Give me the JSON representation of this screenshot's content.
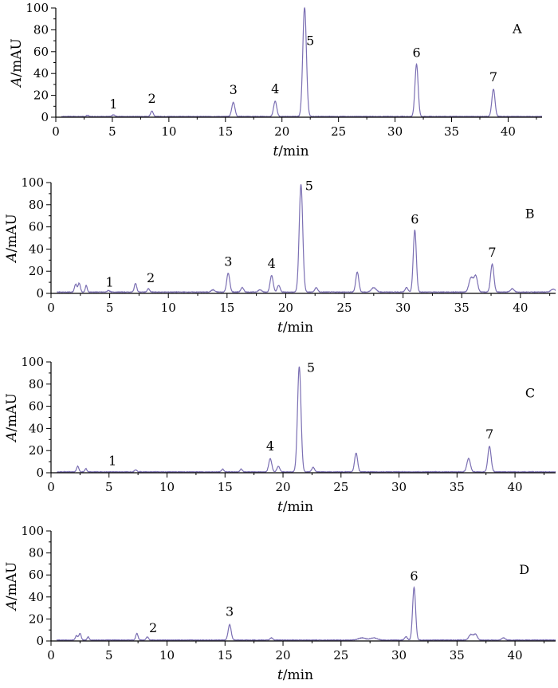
{
  "chart_data": [
    {
      "type": "line",
      "panel": "A",
      "xlabel_italic": "t",
      "xlabel_unit": "/min",
      "ylabel_italic": "A",
      "ylabel_unit": "/mAU",
      "xlim": [
        0,
        43
      ],
      "ylim": [
        0,
        100
      ],
      "xticks": [
        0,
        5,
        10,
        15,
        20,
        25,
        30,
        35,
        40
      ],
      "yticks": [
        0,
        20,
        40,
        60,
        80,
        100
      ],
      "baseline": 0.6,
      "peaks": [
        {
          "rt": 5.1,
          "height": 1.5,
          "width": 0.12
        },
        {
          "rt": 8.5,
          "height": 5,
          "width": 0.12
        },
        {
          "rt": 15.7,
          "height": 13,
          "width": 0.14
        },
        {
          "rt": 19.4,
          "height": 14,
          "width": 0.14
        },
        {
          "rt": 22.0,
          "height": 100,
          "width": 0.16
        },
        {
          "rt": 31.9,
          "height": 48,
          "width": 0.14
        },
        {
          "rt": 38.7,
          "height": 25,
          "width": 0.14
        },
        {
          "rt": 2.8,
          "height": 1,
          "width": 0.1
        }
      ],
      "labels": [
        {
          "text": "1",
          "x": 5.1,
          "y": 8
        },
        {
          "text": "2",
          "x": 8.5,
          "y": 13
        },
        {
          "text": "3",
          "x": 15.7,
          "y": 21
        },
        {
          "text": "4",
          "x": 19.4,
          "y": 22
        },
        {
          "text": "5",
          "x": 22.5,
          "y": 66
        },
        {
          "text": "6",
          "x": 31.9,
          "y": 55
        },
        {
          "text": "7",
          "x": 38.7,
          "y": 33
        }
      ],
      "letter_pos": {
        "x": 40.8,
        "y": 77
      }
    },
    {
      "type": "line",
      "panel": "B",
      "xlabel_italic": "t",
      "xlabel_unit": "/min",
      "ylabel_italic": "A",
      "ylabel_unit": "/mAU",
      "xlim": [
        0,
        43
      ],
      "ylim": [
        0,
        100
      ],
      "xticks": [
        0,
        5,
        10,
        15,
        20,
        25,
        30,
        35,
        40
      ],
      "yticks": [
        0,
        20,
        40,
        60,
        80,
        100
      ],
      "baseline": 1.2,
      "peaks": [
        {
          "rt": 2.1,
          "height": 7,
          "width": 0.1
        },
        {
          "rt": 2.4,
          "height": 8,
          "width": 0.1
        },
        {
          "rt": 3.0,
          "height": 6,
          "width": 0.08
        },
        {
          "rt": 4.9,
          "height": 1.5,
          "width": 0.1
        },
        {
          "rt": 7.2,
          "height": 8,
          "width": 0.1
        },
        {
          "rt": 8.3,
          "height": 3,
          "width": 0.1
        },
        {
          "rt": 13.8,
          "height": 2,
          "width": 0.15
        },
        {
          "rt": 15.1,
          "height": 17,
          "width": 0.13
        },
        {
          "rt": 16.3,
          "height": 4,
          "width": 0.12
        },
        {
          "rt": 17.8,
          "height": 2,
          "width": 0.15
        },
        {
          "rt": 18.8,
          "height": 15,
          "width": 0.13
        },
        {
          "rt": 19.4,
          "height": 6,
          "width": 0.12
        },
        {
          "rt": 21.3,
          "height": 97,
          "width": 0.15
        },
        {
          "rt": 22.6,
          "height": 4,
          "width": 0.12
        },
        {
          "rt": 26.1,
          "height": 18,
          "width": 0.13
        },
        {
          "rt": 27.5,
          "height": 4,
          "width": 0.2
        },
        {
          "rt": 30.3,
          "height": 4,
          "width": 0.12
        },
        {
          "rt": 31.0,
          "height": 56,
          "width": 0.13
        },
        {
          "rt": 35.8,
          "height": 13,
          "width": 0.18
        },
        {
          "rt": 36.2,
          "height": 14,
          "width": 0.15
        },
        {
          "rt": 37.6,
          "height": 25,
          "width": 0.14
        },
        {
          "rt": 39.3,
          "height": 3,
          "width": 0.15
        },
        {
          "rt": 42.8,
          "height": 2.5,
          "width": 0.2
        }
      ],
      "labels": [
        {
          "text": "1",
          "x": 5.0,
          "y": 6
        },
        {
          "text": "2",
          "x": 8.5,
          "y": 10
        },
        {
          "text": "3",
          "x": 15.1,
          "y": 25
        },
        {
          "text": "4",
          "x": 18.8,
          "y": 23
        },
        {
          "text": "5",
          "x": 22.0,
          "y": 93
        },
        {
          "text": "6",
          "x": 31.0,
          "y": 63
        },
        {
          "text": "7",
          "x": 37.6,
          "y": 33
        }
      ],
      "letter_pos": {
        "x": 40.8,
        "y": 68
      }
    },
    {
      "type": "line",
      "panel": "C",
      "xlabel_italic": "t",
      "xlabel_unit": "/min",
      "ylabel_italic": "A",
      "ylabel_unit": "/mAU",
      "xlim": [
        0,
        43.5
      ],
      "ylim": [
        0,
        100
      ],
      "xticks": [
        0,
        5,
        10,
        15,
        20,
        25,
        30,
        35,
        40
      ],
      "yticks": [
        0,
        20,
        40,
        60,
        80,
        100
      ],
      "baseline": 0.8,
      "peaks": [
        {
          "rt": 2.3,
          "height": 5,
          "width": 0.1
        },
        {
          "rt": 3.0,
          "height": 3,
          "width": 0.08
        },
        {
          "rt": 7.3,
          "height": 2,
          "width": 0.1
        },
        {
          "rt": 14.8,
          "height": 2.5,
          "width": 0.1
        },
        {
          "rt": 16.4,
          "height": 2.5,
          "width": 0.1
        },
        {
          "rt": 18.9,
          "height": 12,
          "width": 0.13
        },
        {
          "rt": 19.6,
          "height": 5,
          "width": 0.12
        },
        {
          "rt": 21.4,
          "height": 95,
          "width": 0.15
        },
        {
          "rt": 22.6,
          "height": 4,
          "width": 0.12
        },
        {
          "rt": 26.3,
          "height": 17,
          "width": 0.13
        },
        {
          "rt": 36.0,
          "height": 12,
          "width": 0.15
        },
        {
          "rt": 37.8,
          "height": 23,
          "width": 0.14
        }
      ],
      "labels": [
        {
          "text": "1",
          "x": 5.3,
          "y": 7
        },
        {
          "text": "4",
          "x": 18.9,
          "y": 20
        },
        {
          "text": "5",
          "x": 22.4,
          "y": 91
        },
        {
          "text": "7",
          "x": 37.8,
          "y": 31
        }
      ],
      "letter_pos": {
        "x": 41.3,
        "y": 68
      }
    },
    {
      "type": "line",
      "panel": "D",
      "xlabel_italic": "t",
      "xlabel_unit": "/min",
      "ylabel_italic": "A",
      "ylabel_unit": "/mAU",
      "xlim": [
        0,
        43.5
      ],
      "ylim": [
        0,
        100
      ],
      "xticks": [
        0,
        5,
        10,
        15,
        20,
        25,
        30,
        35,
        40
      ],
      "yticks": [
        0,
        20,
        40,
        60,
        80,
        100
      ],
      "baseline": 0.8,
      "peaks": [
        {
          "rt": 2.2,
          "height": 4,
          "width": 0.1
        },
        {
          "rt": 2.5,
          "height": 6,
          "width": 0.1
        },
        {
          "rt": 3.2,
          "height": 3,
          "width": 0.08
        },
        {
          "rt": 7.4,
          "height": 6,
          "width": 0.1
        },
        {
          "rt": 8.3,
          "height": 3,
          "width": 0.1
        },
        {
          "rt": 15.4,
          "height": 14,
          "width": 0.13
        },
        {
          "rt": 19.0,
          "height": 2,
          "width": 0.12
        },
        {
          "rt": 26.8,
          "height": 2,
          "width": 0.3
        },
        {
          "rt": 27.8,
          "height": 2,
          "width": 0.3
        },
        {
          "rt": 30.6,
          "height": 3,
          "width": 0.12
        },
        {
          "rt": 31.3,
          "height": 48,
          "width": 0.13
        },
        {
          "rt": 36.2,
          "height": 5,
          "width": 0.18
        },
        {
          "rt": 36.6,
          "height": 5,
          "width": 0.15
        },
        {
          "rt": 39.0,
          "height": 2,
          "width": 0.15
        }
      ],
      "labels": [
        {
          "text": "2",
          "x": 8.8,
          "y": 8
        },
        {
          "text": "3",
          "x": 15.4,
          "y": 23
        },
        {
          "text": "6",
          "x": 31.3,
          "y": 55
        }
      ],
      "letter_pos": {
        "x": 40.8,
        "y": 61
      }
    }
  ],
  "colors": {
    "trace": "#7b6fb3",
    "axis": "#000000"
  }
}
